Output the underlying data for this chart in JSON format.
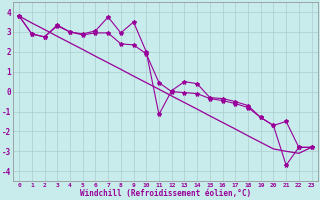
{
  "xlabel": "Windchill (Refroidissement éolien,°C)",
  "xlim": [
    -0.5,
    23.5
  ],
  "ylim": [
    -4.5,
    4.5
  ],
  "yticks": [
    -4,
    -3,
    -2,
    -1,
    0,
    1,
    2,
    3,
    4
  ],
  "xticks": [
    0,
    1,
    2,
    3,
    4,
    5,
    6,
    7,
    8,
    9,
    10,
    11,
    12,
    13,
    14,
    15,
    16,
    17,
    18,
    19,
    20,
    21,
    22,
    23
  ],
  "background_color": "#c8ecec",
  "line_color": "#990099",
  "grid_color": "#aacccc",
  "series1": [
    3.8,
    2.9,
    2.75,
    3.35,
    3.0,
    2.9,
    3.05,
    3.75,
    2.95,
    3.5,
    2.0,
    -1.15,
    0.05,
    0.5,
    0.4,
    -0.3,
    -0.35,
    -0.5,
    -0.7,
    -1.3,
    -1.7,
    -3.7,
    -2.8,
    -2.8
  ],
  "series2": [
    3.8,
    2.9,
    2.75,
    3.3,
    3.0,
    2.85,
    2.95,
    2.95,
    2.4,
    2.35,
    1.9,
    0.45,
    0.0,
    -0.05,
    -0.1,
    -0.35,
    -0.45,
    -0.6,
    -0.8,
    -1.3,
    -1.7,
    -1.5,
    -2.8,
    -2.8
  ],
  "series3": [
    3.8,
    3.45,
    3.12,
    2.78,
    2.45,
    2.12,
    1.78,
    1.45,
    1.12,
    0.78,
    0.45,
    0.12,
    -0.22,
    -0.55,
    -0.88,
    -1.22,
    -1.55,
    -1.88,
    -2.22,
    -2.55,
    -2.88,
    -3.0,
    -3.1,
    -2.8
  ],
  "xlabel_fontsize": 5.5,
  "xtick_fontsize": 4.5,
  "ytick_fontsize": 5.5
}
